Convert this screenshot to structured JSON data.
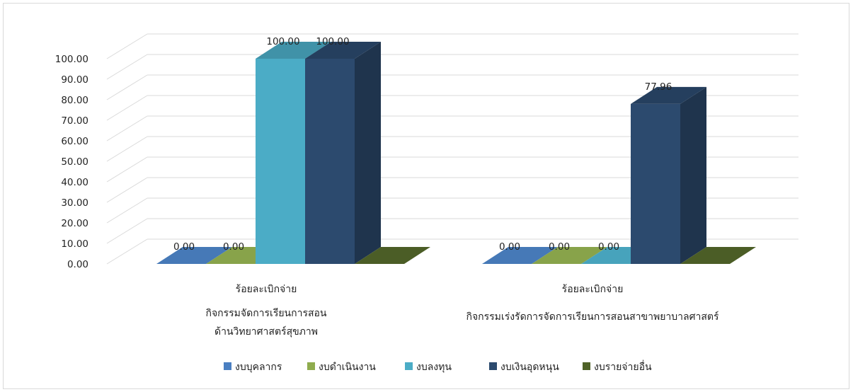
{
  "chart_data": {
    "type": "bar",
    "style": "3d-clustered-column",
    "categories": [
      [
        "ร้อยละเบิกจ่าย",
        "กิจกรรมจัดการเรียนการสอน",
        "ด้านวิทยาศาสตร์สุขภาพ"
      ],
      [
        "ร้อยละเบิกจ่าย",
        "กิจกรรมเร่งรัดการจัดการเรียนการสอนสาขาพยาบาลศาสตร์"
      ]
    ],
    "series": [
      {
        "name": "งบบุคลากร",
        "color": "#4a7fc1",
        "values": [
          0.0,
          0.0
        ]
      },
      {
        "name": "งบดำเนินงาน",
        "color": "#8fac4e",
        "values": [
          0.0,
          0.0
        ]
      },
      {
        "name": "งบลงทุน",
        "color": "#4bacc6",
        "values": [
          100.0,
          0.0
        ]
      },
      {
        "name": "งบเงินอุดหนุน",
        "color": "#2c4a6e",
        "values": [
          100.0,
          77.96
        ]
      },
      {
        "name": "งบรายจ่ายอื่น",
        "color": "#4f6228",
        "values": [
          null,
          null
        ]
      }
    ],
    "data_labels": [
      [
        "0.00",
        "0.00",
        "100.00",
        "100.00"
      ],
      [
        "0.00",
        "0.00",
        "0.00",
        "77.96"
      ]
    ],
    "yticks": [
      "0.00",
      "10.00",
      "20.00",
      "30.00",
      "40.00",
      "50.00",
      "60.00",
      "70.00",
      "80.00",
      "90.00",
      "100.00"
    ],
    "ylim": [
      0,
      100
    ],
    "grid": true,
    "legend_position": "bottom"
  }
}
